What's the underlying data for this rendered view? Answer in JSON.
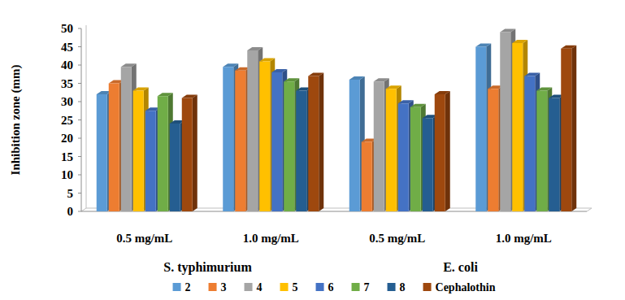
{
  "chart_data": {
    "type": "bar",
    "y_label": "Inhibition zone (mm)",
    "categories": [
      "0.5 mg/mL",
      "1.0 mg/mL",
      "0.5 mg/mL",
      "1.0 mg/mL"
    ],
    "group_labels": [
      "S. typhimurium",
      "E. coli"
    ],
    "series": [
      {
        "name": "2",
        "color": "#5b9bd5",
        "values": [
          32,
          39.5,
          36,
          45
        ]
      },
      {
        "name": "3",
        "color": "#ed7d31",
        "values": [
          35,
          38.5,
          19,
          33.5
        ]
      },
      {
        "name": "4",
        "color": "#a5a5a5",
        "values": [
          39.5,
          44,
          35.5,
          49
        ]
      },
      {
        "name": "5",
        "color": "#ffc000",
        "values": [
          33,
          41,
          33.5,
          46
        ]
      },
      {
        "name": "6",
        "color": "#4472c4",
        "values": [
          27.5,
          38,
          29.5,
          37
        ]
      },
      {
        "name": "7",
        "color": "#70ad47",
        "values": [
          31.5,
          35.5,
          28.5,
          33
        ]
      },
      {
        "name": "8",
        "color": "#255e91",
        "values": [
          24,
          33,
          25.5,
          31
        ]
      },
      {
        "name": "Cephalothin",
        "color": "#9e480e",
        "values": [
          31,
          37,
          32,
          44.5
        ]
      }
    ],
    "ylim": [
      0,
      50
    ],
    "yticks": [
      0,
      5,
      10,
      15,
      20,
      25,
      30,
      35,
      40,
      45,
      50
    ],
    "grid": false,
    "legend": "bottom"
  }
}
